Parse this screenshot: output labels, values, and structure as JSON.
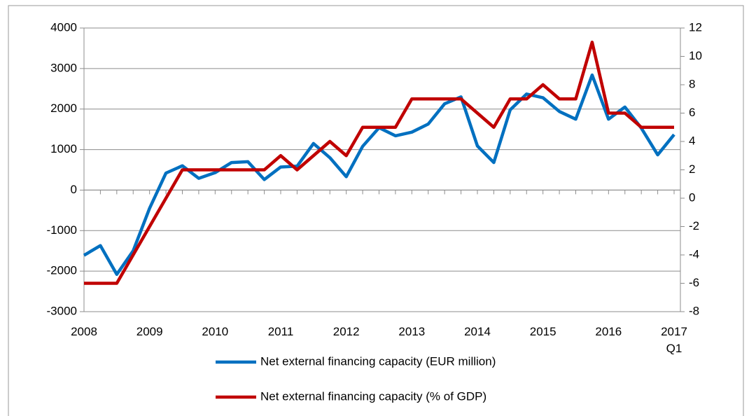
{
  "chart_data": {
    "type": "line",
    "categories": [
      "2008",
      null,
      null,
      null,
      "2009",
      null,
      null,
      null,
      "2010",
      null,
      null,
      null,
      "2011",
      null,
      null,
      null,
      "2012",
      null,
      null,
      null,
      "2013",
      null,
      null,
      null,
      "2014",
      null,
      null,
      null,
      "2015",
      null,
      null,
      null,
      "2016",
      null,
      null,
      null,
      "2017\nQ1"
    ],
    "series": [
      {
        "name": "Net external financing capacity (EUR million)",
        "color": "#0070c0",
        "axis": "y",
        "values": [
          -1610,
          -1370,
          -2080,
          -1500,
          -450,
          420,
          600,
          290,
          430,
          680,
          700,
          260,
          570,
          590,
          1150,
          800,
          330,
          1080,
          1540,
          1340,
          1430,
          1630,
          2130,
          2300,
          1090,
          680,
          1980,
          2370,
          2280,
          1940,
          1750,
          2840,
          1750,
          2050,
          1530,
          870,
          1370
        ]
      },
      {
        "name": "Net external financing capacity (% of GDP)",
        "color": "#c00000",
        "axis": "y2",
        "values": [
          -6,
          -6,
          -6,
          -4,
          -2,
          0,
          2,
          2,
          2,
          2,
          2,
          2,
          3,
          2,
          3,
          4,
          3,
          5,
          5,
          5,
          7,
          7,
          7,
          7,
          6,
          5,
          7,
          7,
          8,
          7,
          7,
          11,
          6,
          6,
          5,
          5,
          5
        ]
      }
    ],
    "ylim": [
      -3000,
      4000
    ],
    "yticks": [
      -3000,
      -2000,
      -1000,
      0,
      1000,
      2000,
      3000,
      4000
    ],
    "y2lim": [
      -8,
      12
    ],
    "y2ticks": [
      -8,
      -6,
      -4,
      -2,
      0,
      2,
      4,
      6,
      8,
      10,
      12
    ],
    "grid": true
  }
}
